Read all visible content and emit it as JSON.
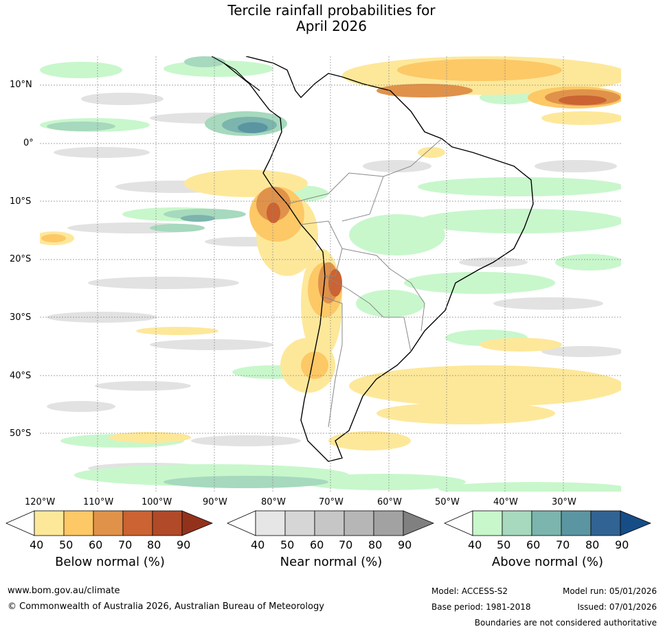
{
  "title": {
    "line1": "Tercile rainfall probabilities for",
    "line2": "April 2026"
  },
  "map": {
    "lat_labels": [
      "10°N",
      "0°",
      "10°S",
      "20°S",
      "30°S",
      "40°S",
      "50°S"
    ],
    "lon_labels": [
      "120°W",
      "110°W",
      "100°W",
      "90°W",
      "80°W",
      "70°W",
      "60°W",
      "50°W",
      "40°W",
      "30°W"
    ],
    "colors": {
      "ocean_bg": "#ffffff",
      "coast": "#000000",
      "borders": "#888888"
    }
  },
  "legends": {
    "below": {
      "title": "Below normal (%)",
      "ticks": [
        "40",
        "50",
        "60",
        "70",
        "80",
        "90"
      ],
      "colors": [
        "#ffffff",
        "#fde89a",
        "#fdc866",
        "#e0924a",
        "#cb6332",
        "#b04a28",
        "#93321c"
      ]
    },
    "near": {
      "title": "Near normal (%)",
      "ticks": [
        "40",
        "50",
        "60",
        "70",
        "80",
        "90"
      ],
      "colors": [
        "#ffffff",
        "#e6e6e6",
        "#d6d6d6",
        "#c6c6c6",
        "#b6b6b6",
        "#a2a2a2",
        "#808080"
      ]
    },
    "above": {
      "title": "Above normal (%)",
      "ticks": [
        "40",
        "50",
        "60",
        "70",
        "80",
        "90"
      ],
      "colors": [
        "#ffffff",
        "#c8f7cc",
        "#a6d9bd",
        "#7bb5ad",
        "#5b95a2",
        "#316493",
        "#174d87"
      ]
    }
  },
  "footer": {
    "website": "www.bom.gov.au/climate",
    "copyright": "© Commonwealth of Australia 2026, Australian Bureau of Meteorology",
    "model": "Model: ACCESS-S2",
    "base_period": "Base period: 1981-2018",
    "model_run": "Model run: 05/01/2026",
    "issued": "Issued: 07/01/2026",
    "boundaries": "Boundaries are not considered authoritative"
  }
}
